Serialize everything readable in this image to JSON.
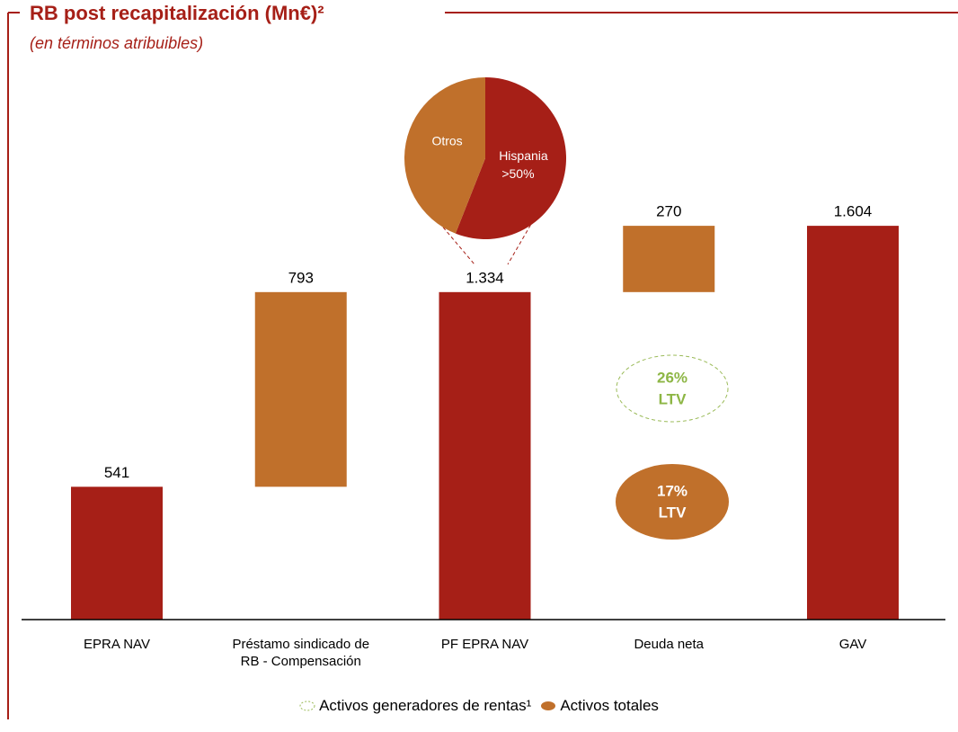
{
  "chart_data": [
    {
      "type": "waterfall",
      "title": "RB post recapitalización (Mn€)²",
      "subtitle": "(en términos atribuibles)",
      "categories": [
        "EPRA NAV",
        "Préstamo sindicado de\nRB - Compensación",
        "PF EPRA NAV",
        "Deuda neta",
        "GAV"
      ],
      "values": [
        541,
        793,
        1334,
        270,
        1604
      ],
      "value_labels": [
        "541",
        "793",
        "1.334",
        "270",
        "1.604"
      ],
      "kinds": [
        "total",
        "increase",
        "total",
        "increase",
        "total"
      ],
      "colors": [
        "#a61f17",
        "#c0702b",
        "#a61f17",
        "#c0702b",
        "#a61f17"
      ],
      "ylim": [
        0,
        2000
      ],
      "annotations": [
        {
          "value": "26%",
          "label": "LTV",
          "color": "#8db645"
        },
        {
          "value": "17%",
          "label": "LTV",
          "color": "#ffffff"
        }
      ],
      "legend": [
        {
          "name": "Activos generadores de rentas¹",
          "color": "#9bbb59"
        },
        {
          "name": "Activos totales",
          "color": "#c0702b"
        }
      ]
    },
    {
      "type": "pie",
      "categories": [
        "Hispania",
        "Otros"
      ],
      "values": [
        56,
        44
      ],
      "value_labels": [
        ">50%",
        null
      ],
      "colors": [
        "#a61f17",
        "#c0702b"
      ]
    }
  ]
}
